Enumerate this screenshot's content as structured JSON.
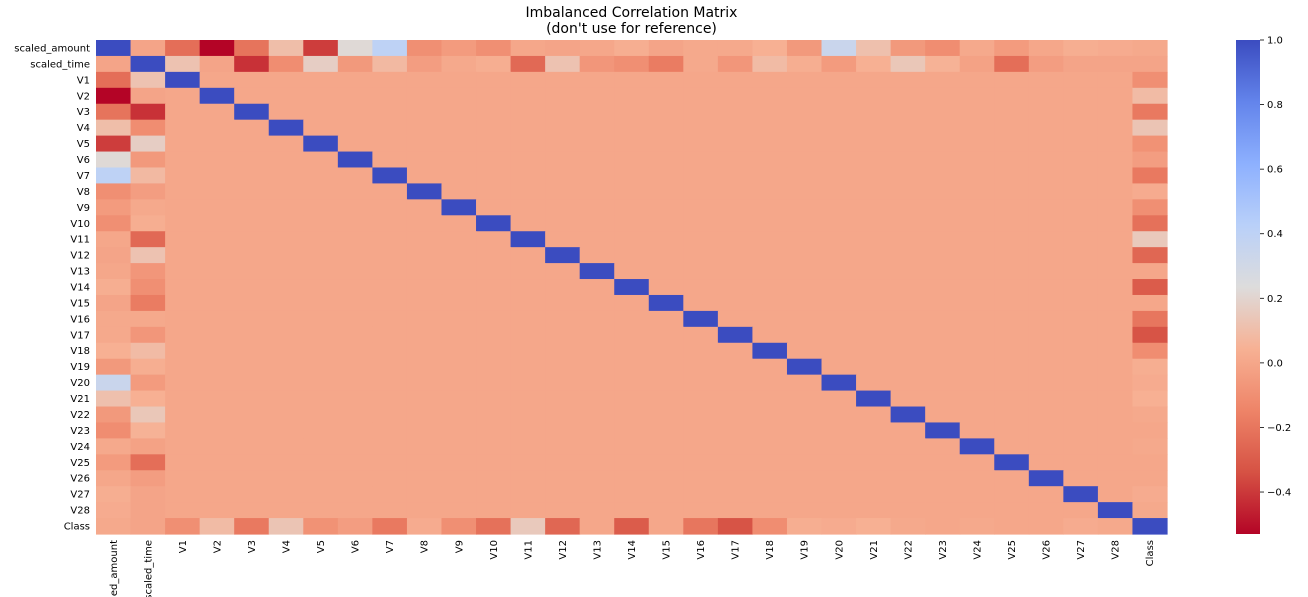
{
  "chart_data": {
    "type": "heatmap",
    "title": "Imbalanced Correlation Matrix",
    "subtitle": "(don't use for reference)",
    "labels": [
      "scaled_amount",
      "scaled_time",
      "V1",
      "V2",
      "V3",
      "V4",
      "V5",
      "V6",
      "V7",
      "V8",
      "V9",
      "V10",
      "V11",
      "V12",
      "V13",
      "V14",
      "V15",
      "V16",
      "V17",
      "V18",
      "V19",
      "V20",
      "V21",
      "V22",
      "V23",
      "V24",
      "V25",
      "V26",
      "V27",
      "V28",
      "Class"
    ],
    "x_tick_labels_shown": [
      "ed_amount",
      "scaled_time",
      "V1",
      "V2",
      "V3",
      "V4",
      "V5",
      "V6",
      "V7",
      "V8",
      "V9",
      "V10",
      "V11",
      "V12",
      "V13",
      "V14",
      "V15",
      "V16",
      "V17",
      "V18",
      "V19",
      "V20",
      "V21",
      "V22",
      "V23",
      "V24",
      "V25",
      "V26",
      "V27",
      "V28",
      "Class"
    ],
    "amount_corr": [
      1,
      -0.01,
      -0.23,
      -0.53,
      -0.21,
      0.1,
      -0.39,
      0.22,
      0.4,
      -0.1,
      -0.05,
      -0.1,
      0,
      -0.01,
      0,
      0.03,
      -0.01,
      0.01,
      0.01,
      0.04,
      -0.06,
      0.34,
      0.11,
      -0.06,
      -0.11,
      0.01,
      -0.05,
      0,
      0.03,
      0.02,
      0.01
    ],
    "time_corr": [
      -0.01,
      1,
      0.12,
      -0.01,
      -0.42,
      -0.11,
      0.17,
      -0.06,
      0.08,
      -0.04,
      0.01,
      0.03,
      -0.25,
      0.12,
      -0.07,
      -0.1,
      -0.18,
      0.01,
      -0.07,
      0.09,
      0.03,
      -0.05,
      0.04,
      0.14,
      0.05,
      -0.02,
      -0.23,
      -0.04,
      -0.01,
      -0.01,
      -0.01
    ],
    "class_corr": [
      0.01,
      -0.01,
      -0.1,
      0.09,
      -0.19,
      0.13,
      -0.09,
      -0.04,
      -0.19,
      0.02,
      -0.1,
      -0.22,
      0.15,
      -0.26,
      0,
      -0.3,
      0,
      -0.2,
      -0.33,
      -0.11,
      0.03,
      0.02,
      0.04,
      0.01,
      0,
      0.01,
      0,
      0,
      0.02,
      0.01,
      1
    ],
    "other_corr_default": 0,
    "colorbar": {
      "ticks": [
        1.0,
        0.8,
        0.6,
        0.4,
        0.2,
        0.0,
        -0.2,
        -0.4
      ],
      "tick_labels": [
        "1.0",
        "0.8",
        "0.6",
        "0.4",
        "0.2",
        "0.0",
        "−0.2",
        "−0.4"
      ],
      "vmin": -0.53,
      "vmax": 1.0
    },
    "colormap": "coolwarm",
    "grid": false
  }
}
